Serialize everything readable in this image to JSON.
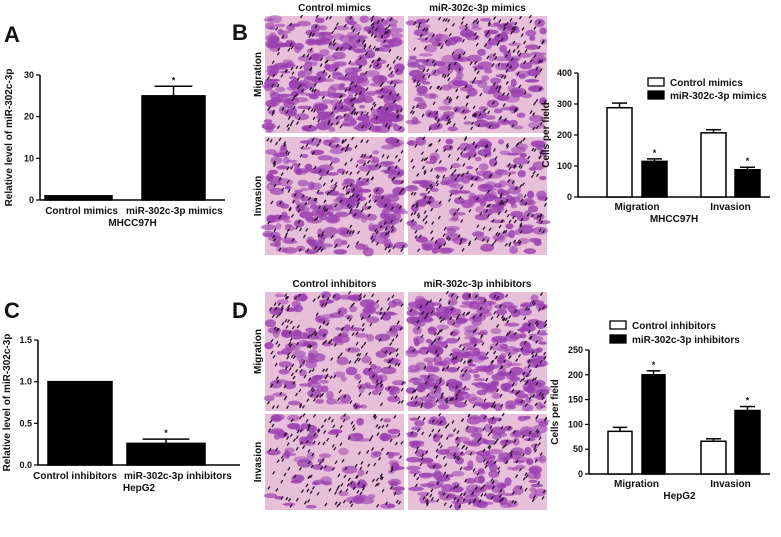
{
  "panel_labels": [
    "A",
    "B",
    "C",
    "D"
  ],
  "micrographs": {
    "B": {
      "columns": [
        "Control mimics",
        "miR-302c-3p mimics"
      ],
      "rows": [
        "Migration",
        "Invasion"
      ],
      "stain_color": "#9a3fb0",
      "background_color": "#e8bfd8"
    },
    "D": {
      "columns": [
        "Control inhibitors",
        "miR-302c-3p inhibitors"
      ],
      "rows": [
        "Migration",
        "Invasion"
      ],
      "stain_color": "#9a3fb0",
      "background_color": "#e8bfd8"
    }
  },
  "chart_data": [
    {
      "panel": "A",
      "type": "bar",
      "categories": [
        "Control mimics",
        "miR-302c-3p mimics"
      ],
      "values": [
        1,
        25
      ],
      "errors": [
        0,
        2.3
      ],
      "significance": [
        "",
        "*"
      ],
      "xlabel": "MHCC97H",
      "ylabel": "Relative level of miR-302c-3p",
      "ylim": [
        0,
        30
      ],
      "yticks": [
        "0",
        "10",
        "20",
        "30"
      ],
      "colors": [
        "#000000",
        "#000000"
      ]
    },
    {
      "panel": "B",
      "type": "bar",
      "categories": [
        "Migration",
        "Invasion"
      ],
      "series": [
        {
          "name": "Control mimics",
          "values": [
            288,
            207
          ],
          "errors": [
            15,
            10
          ],
          "significance": [
            "",
            ""
          ],
          "color": "#ffffff"
        },
        {
          "name": "miR-302c-3p mimics",
          "values": [
            115,
            88
          ],
          "errors": [
            8,
            8
          ],
          "significance": [
            "*",
            "*"
          ],
          "color": "#000000"
        }
      ],
      "xlabel": "MHCC97H",
      "ylabel": "Cells per field",
      "ylim": [
        0,
        400
      ],
      "yticks": [
        "0",
        "100",
        "200",
        "300",
        "400"
      ],
      "legend": "top-right"
    },
    {
      "panel": "C",
      "type": "bar",
      "categories": [
        "Control inhibitors",
        "miR-302c-3p inhibitors"
      ],
      "values": [
        1.0,
        0.26
      ],
      "errors": [
        0,
        0.05
      ],
      "significance": [
        "",
        "*"
      ],
      "xlabel": "HepG2",
      "ylabel": "Relative level of miR-302c-3p",
      "ylim": [
        0,
        1.5
      ],
      "yticks": [
        "0.0",
        "0.5",
        "1.0",
        "1.5"
      ],
      "colors": [
        "#000000",
        "#000000"
      ]
    },
    {
      "panel": "D",
      "type": "bar",
      "categories": [
        "Migration",
        "Invasion"
      ],
      "series": [
        {
          "name": "Control inhibitors",
          "values": [
            86,
            66
          ],
          "errors": [
            8,
            5
          ],
          "significance": [
            "",
            ""
          ],
          "color": "#ffffff"
        },
        {
          "name": "miR-302c-3p inhibitors",
          "values": [
            200,
            128
          ],
          "errors": [
            8,
            8
          ],
          "significance": [
            "*",
            "*"
          ],
          "color": "#000000"
        }
      ],
      "xlabel": "HepG2",
      "ylabel": "Cells per field",
      "ylim": [
        0,
        250
      ],
      "yticks": [
        "0",
        "50",
        "100",
        "150",
        "200",
        "250"
      ],
      "legend": "top"
    }
  ]
}
